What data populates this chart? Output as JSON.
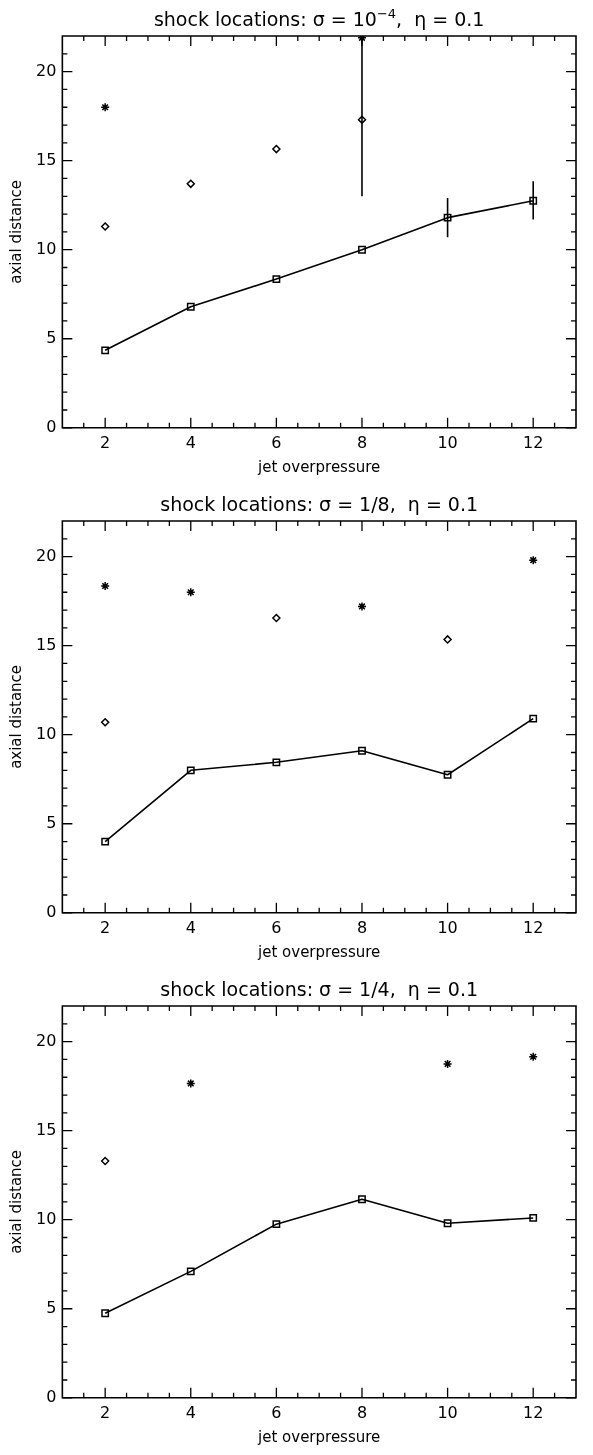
{
  "chart_data": [
    {
      "type": "scatter",
      "title": "shock locations: σ = 10$^{−4}$,  η = 0.1",
      "xlabel": "jet overpressure",
      "ylabel": "axial distance",
      "x": [
        2,
        4,
        6,
        8,
        10,
        12
      ],
      "xlim": [
        1,
        13
      ],
      "ylim": [
        0,
        22
      ],
      "xticks": [
        {
          "value": 1.5,
          "label": null
        },
        2,
        {
          "value": 2.5,
          "label": null
        },
        {
          "value": 3,
          "label": null
        },
        {
          "value": 3.5,
          "label": null
        },
        4,
        {
          "value": 4.5,
          "label": null
        },
        {
          "value": 5,
          "label": null
        },
        {
          "value": 5.5,
          "label": null
        },
        6,
        {
          "value": 6.5,
          "label": null
        },
        {
          "value": 7,
          "label": null
        },
        {
          "value": 7.5,
          "label": null
        },
        8,
        {
          "value": 8.5,
          "label": null
        },
        {
          "value": 9,
          "label": null
        },
        {
          "value": 9.5,
          "label": null
        },
        10,
        {
          "value": 10.5,
          "label": null
        },
        {
          "value": 11,
          "label": null
        },
        {
          "value": 11.5,
          "label": null
        },
        12,
        {
          "value": 12.5,
          "label": null
        }
      ],
      "yticks": [
        0,
        {
          "value": 1,
          "label": null
        },
        {
          "value": 2,
          "label": null
        },
        {
          "value": 3,
          "label": null
        },
        {
          "value": 4,
          "label": null
        },
        5,
        {
          "value": 6,
          "label": null
        },
        {
          "value": 7,
          "label": null
        },
        {
          "value": 8,
          "label": null
        },
        {
          "value": 9,
          "label": null
        },
        10,
        {
          "value": 11,
          "label": null
        },
        {
          "value": 12,
          "label": null
        },
        {
          "value": 13,
          "label": null
        },
        {
          "value": 14,
          "label": null
        },
        15,
        {
          "value": 16,
          "label": null
        },
        {
          "value": 17,
          "label": null
        },
        {
          "value": 18,
          "label": null
        },
        {
          "value": 19,
          "label": null
        },
        20,
        {
          "value": 21,
          "label": null
        }
      ],
      "series": [
        {
          "type": "line",
          "marker": "square",
          "color": "#000000",
          "values": [
            4.35,
            6.8,
            8.35,
            10.0,
            11.8,
            12.75
          ],
          "errors": [
            null,
            null,
            null,
            null,
            [
              10.7,
              12.9
            ],
            [
              11.7,
              13.85
            ]
          ]
        },
        {
          "marker": "diamond",
          "color": "#000000",
          "values": [
            11.3,
            13.7,
            15.65,
            17.3,
            null,
            null
          ],
          "errors": [
            null,
            null,
            null,
            [
              13.0,
              22.0
            ],
            null,
            null
          ]
        },
        {
          "marker": "cross",
          "color": "#000000",
          "values": [
            18.0,
            null,
            null,
            21.9,
            null,
            null
          ]
        }
      ]
    },
    {
      "type": "scatter",
      "title": "shock locations: σ = 1/8,  η = 0.1",
      "xlabel": "jet overpressure",
      "ylabel": "axial distance",
      "x": [
        2,
        4,
        6,
        8,
        10,
        12
      ],
      "xlim": [
        1,
        13
      ],
      "ylim": [
        0,
        22
      ],
      "xticks": [
        {
          "value": 1.5,
          "label": null
        },
        2,
        {
          "value": 2.5,
          "label": null
        },
        {
          "value": 3,
          "label": null
        },
        {
          "value": 3.5,
          "label": null
        },
        4,
        {
          "value": 4.5,
          "label": null
        },
        {
          "value": 5,
          "label": null
        },
        {
          "value": 5.5,
          "label": null
        },
        6,
        {
          "value": 6.5,
          "label": null
        },
        {
          "value": 7,
          "label": null
        },
        {
          "value": 7.5,
          "label": null
        },
        8,
        {
          "value": 8.5,
          "label": null
        },
        {
          "value": 9,
          "label": null
        },
        {
          "value": 9.5,
          "label": null
        },
        10,
        {
          "value": 10.5,
          "label": null
        },
        {
          "value": 11,
          "label": null
        },
        {
          "value": 11.5,
          "label": null
        },
        12,
        {
          "value": 12.5,
          "label": null
        }
      ],
      "yticks": [
        0,
        {
          "value": 1,
          "label": null
        },
        {
          "value": 2,
          "label": null
        },
        {
          "value": 3,
          "label": null
        },
        {
          "value": 4,
          "label": null
        },
        5,
        {
          "value": 6,
          "label": null
        },
        {
          "value": 7,
          "label": null
        },
        {
          "value": 8,
          "label": null
        },
        {
          "value": 9,
          "label": null
        },
        10,
        {
          "value": 11,
          "label": null
        },
        {
          "value": 12,
          "label": null
        },
        {
          "value": 13,
          "label": null
        },
        {
          "value": 14,
          "label": null
        },
        15,
        {
          "value": 16,
          "label": null
        },
        {
          "value": 17,
          "label": null
        },
        {
          "value": 18,
          "label": null
        },
        {
          "value": 19,
          "label": null
        },
        20,
        {
          "value": 21,
          "label": null
        }
      ],
      "series": [
        {
          "type": "line",
          "marker": "square",
          "color": "#000000",
          "values": [
            4.0,
            8.0,
            8.45,
            9.1,
            7.75,
            10.9
          ]
        },
        {
          "marker": "diamond",
          "color": "#000000",
          "values": [
            10.7,
            null,
            16.55,
            null,
            15.35,
            null
          ]
        },
        {
          "marker": "cross",
          "color": "#000000",
          "values": [
            18.35,
            18.0,
            null,
            17.2,
            null,
            19.8
          ]
        }
      ]
    },
    {
      "type": "scatter",
      "title": "shock locations: σ = 1/4,  η = 0.1",
      "xlabel": "jet overpressure",
      "ylabel": "axial distance",
      "x": [
        2,
        4,
        6,
        8,
        10,
        12
      ],
      "xlim": [
        1,
        13
      ],
      "ylim": [
        0,
        22
      ],
      "xticks": [
        {
          "value": 1.5,
          "label": null
        },
        2,
        {
          "value": 2.5,
          "label": null
        },
        {
          "value": 3,
          "label": null
        },
        {
          "value": 3.5,
          "label": null
        },
        4,
        {
          "value": 4.5,
          "label": null
        },
        {
          "value": 5,
          "label": null
        },
        {
          "value": 5.5,
          "label": null
        },
        6,
        {
          "value": 6.5,
          "label": null
        },
        {
          "value": 7,
          "label": null
        },
        {
          "value": 7.5,
          "label": null
        },
        8,
        {
          "value": 8.5,
          "label": null
        },
        {
          "value": 9,
          "label": null
        },
        {
          "value": 9.5,
          "label": null
        },
        10,
        {
          "value": 10.5,
          "label": null
        },
        {
          "value": 11,
          "label": null
        },
        {
          "value": 11.5,
          "label": null
        },
        12,
        {
          "value": 12.5,
          "label": null
        }
      ],
      "yticks": [
        0,
        {
          "value": 1,
          "label": null
        },
        {
          "value": 2,
          "label": null
        },
        {
          "value": 3,
          "label": null
        },
        {
          "value": 4,
          "label": null
        },
        5,
        {
          "value": 6,
          "label": null
        },
        {
          "value": 7,
          "label": null
        },
        {
          "value": 8,
          "label": null
        },
        {
          "value": 9,
          "label": null
        },
        10,
        {
          "value": 11,
          "label": null
        },
        {
          "value": 12,
          "label": null
        },
        {
          "value": 13,
          "label": null
        },
        {
          "value": 14,
          "label": null
        },
        15,
        {
          "value": 16,
          "label": null
        },
        {
          "value": 17,
          "label": null
        },
        {
          "value": 18,
          "label": null
        },
        {
          "value": 19,
          "label": null
        },
        20,
        {
          "value": 21,
          "label": null
        }
      ],
      "series": [
        {
          "type": "line",
          "marker": "square",
          "color": "#000000",
          "values": [
            4.75,
            7.1,
            9.75,
            11.15,
            9.8,
            10.1
          ]
        },
        {
          "marker": "diamond",
          "color": "#000000",
          "values": [
            13.3,
            null,
            null,
            null,
            null,
            null
          ]
        },
        {
          "marker": "cross",
          "color": "#000000",
          "values": [
            null,
            17.65,
            null,
            null,
            18.75,
            19.15
          ]
        }
      ]
    }
  ]
}
